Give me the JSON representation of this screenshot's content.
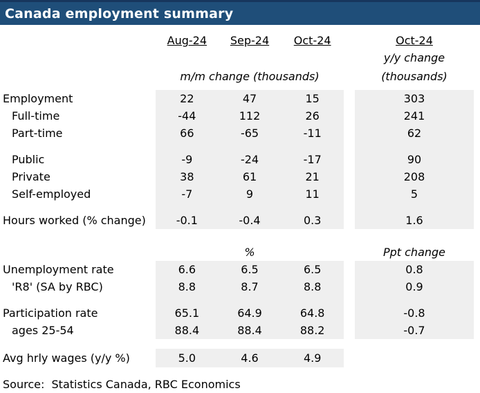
{
  "title": "Canada employment summary",
  "colors": {
    "header_bg": "#1F4E79",
    "header_top_edge": "#17365D",
    "title_text": "#FFFFFF",
    "shade": "#EFEFEF",
    "body_text": "#000000"
  },
  "chart_data": {
    "type": "table",
    "title": "Canada employment summary",
    "column_headers": {
      "months": [
        "Aug-24",
        "Sep-24",
        "Oct-24"
      ],
      "yoy_month": "Oct-24"
    },
    "units": {
      "mm_label": "m/m change (thousands)",
      "yoy_label_line1": "y/y change",
      "yoy_label_line2": "(thousands)",
      "section2_mm_label": "%",
      "section2_yoy_label": "Ppt change"
    },
    "section1_rows": [
      {
        "label": "Employment",
        "values": [
          "22",
          "47",
          "15"
        ],
        "yoy": "303"
      },
      {
        "label": "Full-time",
        "values": [
          "-44",
          "112",
          "26"
        ],
        "yoy": "241"
      },
      {
        "label": "Part-time",
        "values": [
          "66",
          "-65",
          "-11"
        ],
        "yoy": "62"
      },
      {
        "label": "Public",
        "values": [
          "-9",
          "-24",
          "-17"
        ],
        "yoy": "90"
      },
      {
        "label": "Private",
        "values": [
          "38",
          "61",
          "21"
        ],
        "yoy": "208"
      },
      {
        "label": "Self-employed",
        "values": [
          "-7",
          "9",
          "11"
        ],
        "yoy": "5"
      },
      {
        "label": "Hours worked (% change)",
        "values": [
          "-0.1",
          "-0.4",
          "0.3"
        ],
        "yoy": "1.6"
      }
    ],
    "section2_rows": [
      {
        "label": "Unemployment rate",
        "values": [
          "6.6",
          "6.5",
          "6.5"
        ],
        "yoy": "0.8"
      },
      {
        "label": "'R8' (SA by RBC)",
        "values": [
          "8.8",
          "8.7",
          "8.8"
        ],
        "yoy": "0.9"
      },
      {
        "label": "Participation rate",
        "values": [
          "65.1",
          "64.9",
          "64.8"
        ],
        "yoy": "-0.8"
      },
      {
        "label": "ages 25-54",
        "values": [
          "88.4",
          "88.4",
          "88.2"
        ],
        "yoy": "-0.7"
      }
    ],
    "section3_rows": [
      {
        "label": "Avg hrly wages (y/y %)",
        "values": [
          "5.0",
          "4.6",
          "4.9"
        ],
        "yoy": ""
      }
    ],
    "source": "Source:  Statistics Canada, RBC Economics"
  }
}
